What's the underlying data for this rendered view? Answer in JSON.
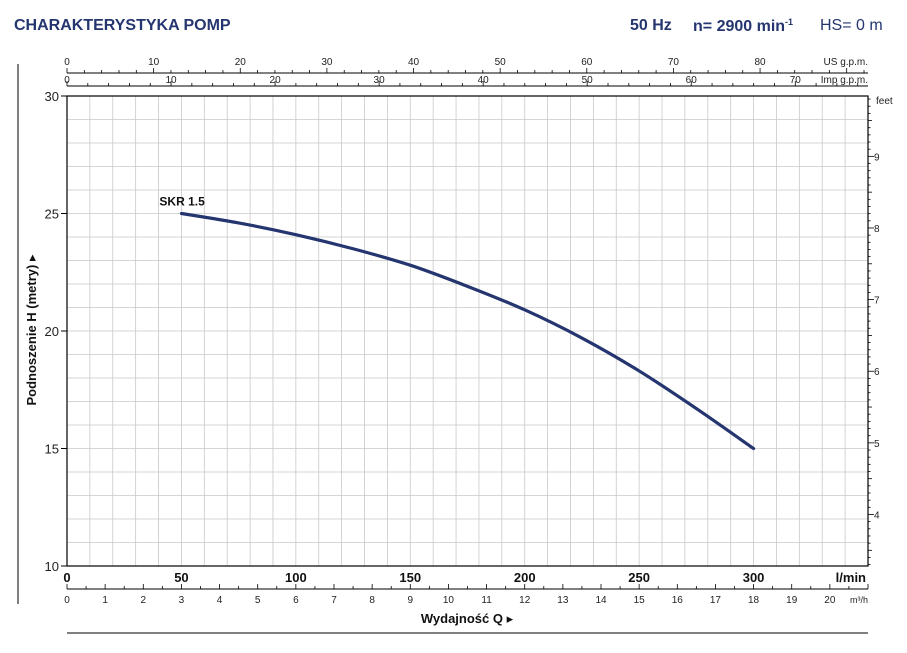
{
  "header": {
    "title": "CHARAKTERYSTYKA POMP",
    "frequency": "50 Hz",
    "speed_prefix": "n= 2900 min",
    "speed_sup": "-1",
    "suction_head": "HS= 0 m"
  },
  "colors": {
    "accent": "#24356f",
    "curve": "#24356f",
    "grid": "#c8c8c8",
    "frame": "#000000"
  },
  "chart_data": {
    "type": "line",
    "title": "",
    "xlabel": "Wydajność Q",
    "ylabel": "Podnoszenie H (metry)",
    "x_unit": "l/min",
    "xlim": [
      0,
      350
    ],
    "ylim": [
      10,
      30
    ],
    "x_ticks": [
      0,
      50,
      100,
      150,
      200,
      250,
      300
    ],
    "y_ticks": [
      10,
      15,
      20,
      25,
      30
    ],
    "grid": true,
    "series": [
      {
        "name": "SKR 1.5",
        "x": [
          50,
          75,
          100,
          125,
          150,
          175,
          200,
          225,
          250,
          275,
          300
        ],
        "y": [
          25.0,
          24.6,
          24.1,
          23.5,
          22.8,
          21.9,
          20.9,
          19.7,
          18.3,
          16.7,
          15.0
        ]
      }
    ],
    "secondary_axes": {
      "us_gpm": {
        "label": "US g.p.m.",
        "ticks": [
          0,
          10,
          20,
          30,
          40,
          50,
          60,
          70,
          80
        ]
      },
      "imp_gpm": {
        "label": "Imp g.p.m.",
        "ticks": [
          0,
          10,
          20,
          30,
          40,
          50,
          60,
          70
        ]
      },
      "m3h": {
        "label": "m³/h",
        "ticks": [
          0,
          1,
          2,
          3,
          4,
          5,
          6,
          7,
          8,
          9,
          10,
          11,
          12,
          13,
          14,
          15,
          16,
          17,
          18,
          19,
          20
        ]
      },
      "feet": {
        "label": "feet",
        "ticks": [
          4,
          5,
          6,
          7,
          8,
          9
        ]
      }
    }
  }
}
